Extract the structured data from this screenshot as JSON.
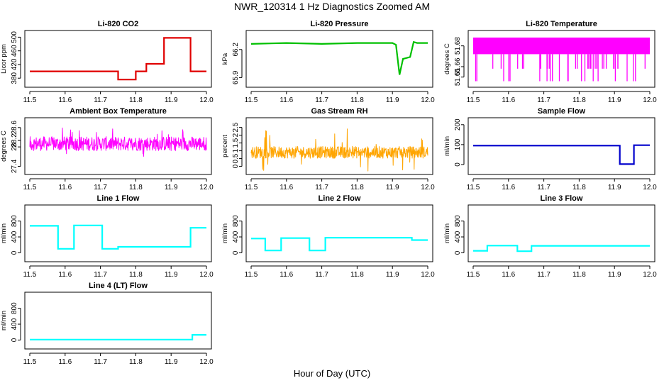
{
  "figure": {
    "title": "NWR_120314  1 Hz Diagnostics Zoomed AM",
    "xlabel": "Hour of Day (UTC)"
  },
  "chart_data": [
    {
      "type": "line",
      "title": "Li-820 CO2",
      "ylabel": "Licor ppm",
      "color": "#e00000",
      "xlim": [
        11.5,
        12.0
      ],
      "xticks": [
        "11.5",
        "11.6",
        "11.7",
        "11.8",
        "11.9",
        "12.0"
      ],
      "ylim": [
        368,
        505
      ],
      "yticks": [
        380,
        420,
        460,
        500
      ],
      "series": [
        {
          "x": [
            11.5,
            11.75,
            11.75,
            11.8,
            11.8,
            11.83,
            11.83,
            11.88,
            11.88,
            11.955,
            11.955,
            12.0
          ],
          "y": [
            400,
            400,
            376,
            376,
            400,
            400,
            422,
            422,
            498,
            498,
            400,
            400
          ]
        }
      ]
    },
    {
      "type": "line",
      "title": "Li-820 Pressure",
      "ylabel": "kPa",
      "color": "#00c000",
      "xlim": [
        11.5,
        12.0
      ],
      "xticks": [
        "11.5",
        "11.6",
        "11.7",
        "11.8",
        "11.9",
        "12.0"
      ],
      "ylim": [
        65.85,
        66.35
      ],
      "yticks": [
        65.9,
        66.2
      ],
      "series": [
        {
          "x": [
            11.5,
            11.6,
            11.7,
            11.8,
            11.9,
            11.91,
            11.92,
            11.93,
            11.95,
            11.96,
            11.97,
            12.0
          ],
          "y": [
            66.26,
            66.27,
            66.26,
            66.27,
            66.27,
            66.25,
            65.93,
            66.1,
            66.12,
            66.28,
            66.27,
            66.27
          ]
        }
      ]
    },
    {
      "type": "line",
      "title": "Li-820 Temperature",
      "ylabel": "degrees C",
      "color": "#ff00ff",
      "xlim": [
        11.5,
        12.0
      ],
      "xticks": [
        "11.5",
        "11.6",
        "11.7",
        "11.8",
        "11.9",
        "12.0"
      ],
      "ylim": [
        51.645,
        51.69
      ],
      "yticks": [
        51.65,
        51.66,
        51.68
      ],
      "series": [
        {
          "x": [
            11.5,
            12.0
          ],
          "y": [
            51.672,
            51.672
          ]
        }
      ]
    },
    {
      "type": "line",
      "title": "Ambient Box Temperature",
      "ylabel": "degrees C",
      "color": "#ff00ff",
      "xlim": [
        11.5,
        12.0
      ],
      "xticks": [
        "11.5",
        "11.6",
        "11.7",
        "11.8",
        "11.9",
        "12.0"
      ],
      "ylim": [
        27.3,
        28.75
      ],
      "yticks": [
        27.4,
        28.0,
        28.2,
        28.6
      ],
      "series": [
        {
          "x": [
            11.5,
            12.0
          ],
          "y": [
            28.1,
            28.1
          ]
        }
      ]
    },
    {
      "type": "line",
      "title": "Gas Stream RH",
      "ylabel": "percent",
      "color": "#ffa500",
      "xlim": [
        11.5,
        12.0
      ],
      "xticks": [
        "11.5",
        "11.6",
        "11.7",
        "11.8",
        "11.9",
        "12.0"
      ],
      "ylim": [
        -0.2,
        2.8
      ],
      "yticks": [
        0.0,
        0.5,
        1.0,
        1.5,
        2.0,
        2.5
      ],
      "series": [
        {
          "x": [
            11.5,
            12.0
          ],
          "y": [
            0.9,
            0.9
          ]
        }
      ]
    },
    {
      "type": "line",
      "title": "Sample Flow",
      "ylabel": "ml/min",
      "color": "#0000cc",
      "xlim": [
        11.5,
        12.0
      ],
      "xticks": [
        "11.5",
        "11.6",
        "11.7",
        "11.8",
        "11.9",
        "12.0"
      ],
      "ylim": [
        -25,
        210
      ],
      "yticks": [
        0,
        100,
        200
      ],
      "series": [
        {
          "x": [
            11.5,
            11.915,
            11.915,
            11.955,
            11.955,
            12.0
          ],
          "y": [
            95,
            95,
            2,
            2,
            97,
            97
          ]
        }
      ]
    },
    {
      "type": "line",
      "title": "Line 1 Flow",
      "ylabel": "ml/min",
      "color": "#00ffff",
      "xlim": [
        11.5,
        12.0
      ],
      "xticks": [
        "11.5",
        "11.6",
        "11.7",
        "11.8",
        "11.9",
        "12.0"
      ],
      "ylim": [
        -100,
        1080
      ],
      "yticks": [
        0,
        400,
        800
      ],
      "series": [
        {
          "x": [
            11.5,
            11.58,
            11.58,
            11.625,
            11.625,
            11.705,
            11.705,
            11.75,
            11.75,
            11.955,
            11.955,
            12.0
          ],
          "y": [
            680,
            680,
            100,
            100,
            690,
            690,
            100,
            100,
            150,
            150,
            630,
            630
          ]
        }
      ]
    },
    {
      "type": "line",
      "title": "Line 2 Flow",
      "ylabel": "ml/min",
      "color": "#00ffff",
      "xlim": [
        11.5,
        12.0
      ],
      "xticks": [
        "11.5",
        "11.6",
        "11.7",
        "11.8",
        "11.9",
        "12.0"
      ],
      "ylim": [
        -100,
        1080
      ],
      "yticks": [
        0,
        400,
        800
      ],
      "series": [
        {
          "x": [
            11.5,
            11.54,
            11.54,
            11.585,
            11.585,
            11.665,
            11.665,
            11.71,
            11.71,
            11.955,
            11.955,
            12.0
          ],
          "y": [
            360,
            360,
            60,
            60,
            370,
            370,
            60,
            60,
            380,
            380,
            320,
            320
          ]
        }
      ]
    },
    {
      "type": "line",
      "title": "Line 3 Flow",
      "ylabel": "ml/min",
      "color": "#00ffff",
      "xlim": [
        11.5,
        12.0
      ],
      "xticks": [
        "11.5",
        "11.6",
        "11.7",
        "11.8",
        "11.9",
        "12.0"
      ],
      "ylim": [
        -100,
        1080
      ],
      "yticks": [
        0,
        400,
        800
      ],
      "series": [
        {
          "x": [
            11.5,
            11.54,
            11.54,
            11.625,
            11.625,
            11.665,
            11.665,
            12.0
          ],
          "y": [
            50,
            50,
            180,
            180,
            40,
            40,
            175,
            175
          ]
        }
      ]
    },
    {
      "type": "line",
      "title": "Line 4 (LT) Flow",
      "ylabel": "ml/min",
      "color": "#00ffff",
      "xlim": [
        11.5,
        12.0
      ],
      "xticks": [
        "11.5",
        "11.6",
        "11.7",
        "11.8",
        "11.9",
        "12.0"
      ],
      "ylim": [
        -100,
        1080
      ],
      "yticks": [
        0,
        400,
        800
      ],
      "series": [
        {
          "x": [
            11.5,
            11.96,
            11.96,
            12.0
          ],
          "y": [
            10,
            10,
            130,
            130
          ]
        }
      ]
    }
  ]
}
